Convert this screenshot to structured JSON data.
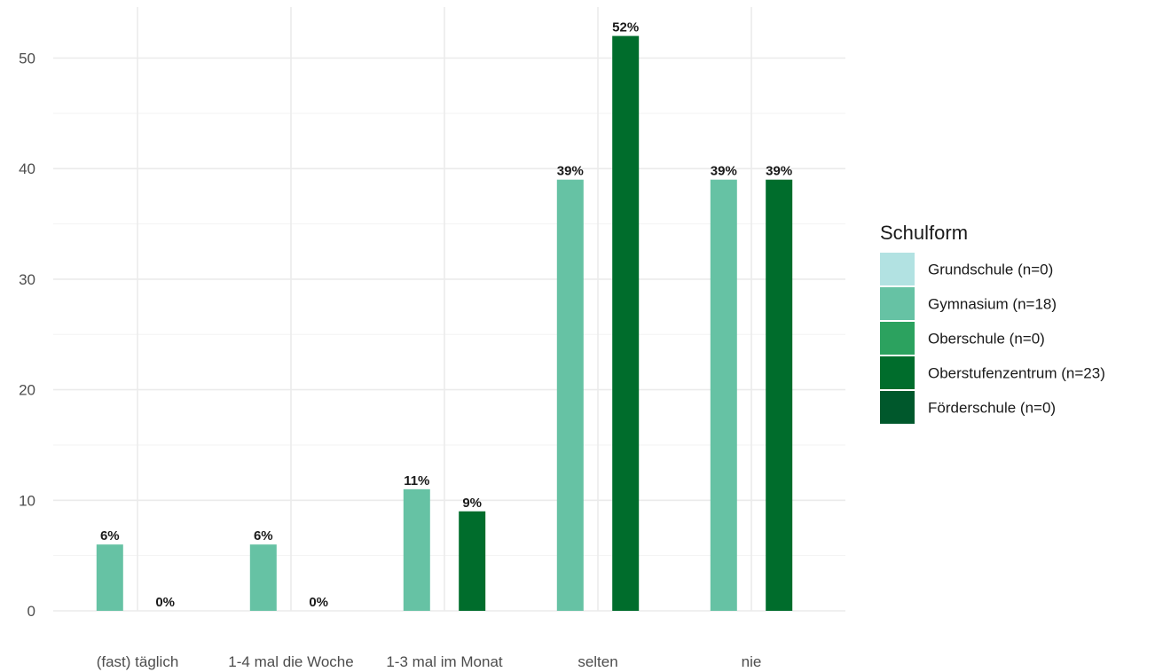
{
  "chart_data": {
    "type": "bar",
    "title": "",
    "xlabel": "",
    "ylabel": "",
    "categories": [
      "(fast) täglich",
      "1-4 mal die Woche",
      "1-3 mal im Monat",
      "selten",
      "nie"
    ],
    "ylim": [
      0,
      55
    ],
    "yticks": [
      0,
      10,
      20,
      30,
      40,
      50
    ],
    "grid": true,
    "series": [
      {
        "name": "Grundschule (n=0)",
        "color": "#b2e2e2",
        "values": [
          null,
          null,
          null,
          null,
          null
        ],
        "labels": [
          "",
          "",
          "",
          "",
          ""
        ]
      },
      {
        "name": "Gymnasium (n=18)",
        "color": "#66c2a4",
        "values": [
          6,
          6,
          11,
          39,
          39
        ],
        "labels": [
          "6%",
          "6%",
          "11%",
          "39%",
          "39%"
        ]
      },
      {
        "name": "Oberschule (n=0)",
        "color": "#2ca25f",
        "values": [
          null,
          null,
          null,
          null,
          null
        ],
        "labels": [
          "",
          "",
          "",
          "",
          ""
        ]
      },
      {
        "name": "Oberstufenzentrum (n=23)",
        "color": "#006d2c",
        "values": [
          0,
          0,
          9,
          52,
          39
        ],
        "labels": [
          "0%",
          "0%",
          "9%",
          "52%",
          "39%"
        ]
      },
      {
        "name": "Förderschule (n=0)",
        "color": "#00582c",
        "values": [
          null,
          null,
          null,
          null,
          null
        ],
        "labels": [
          "",
          "",
          "",
          "",
          ""
        ]
      }
    ],
    "legend": {
      "title": "Schulform",
      "position": "right"
    }
  }
}
